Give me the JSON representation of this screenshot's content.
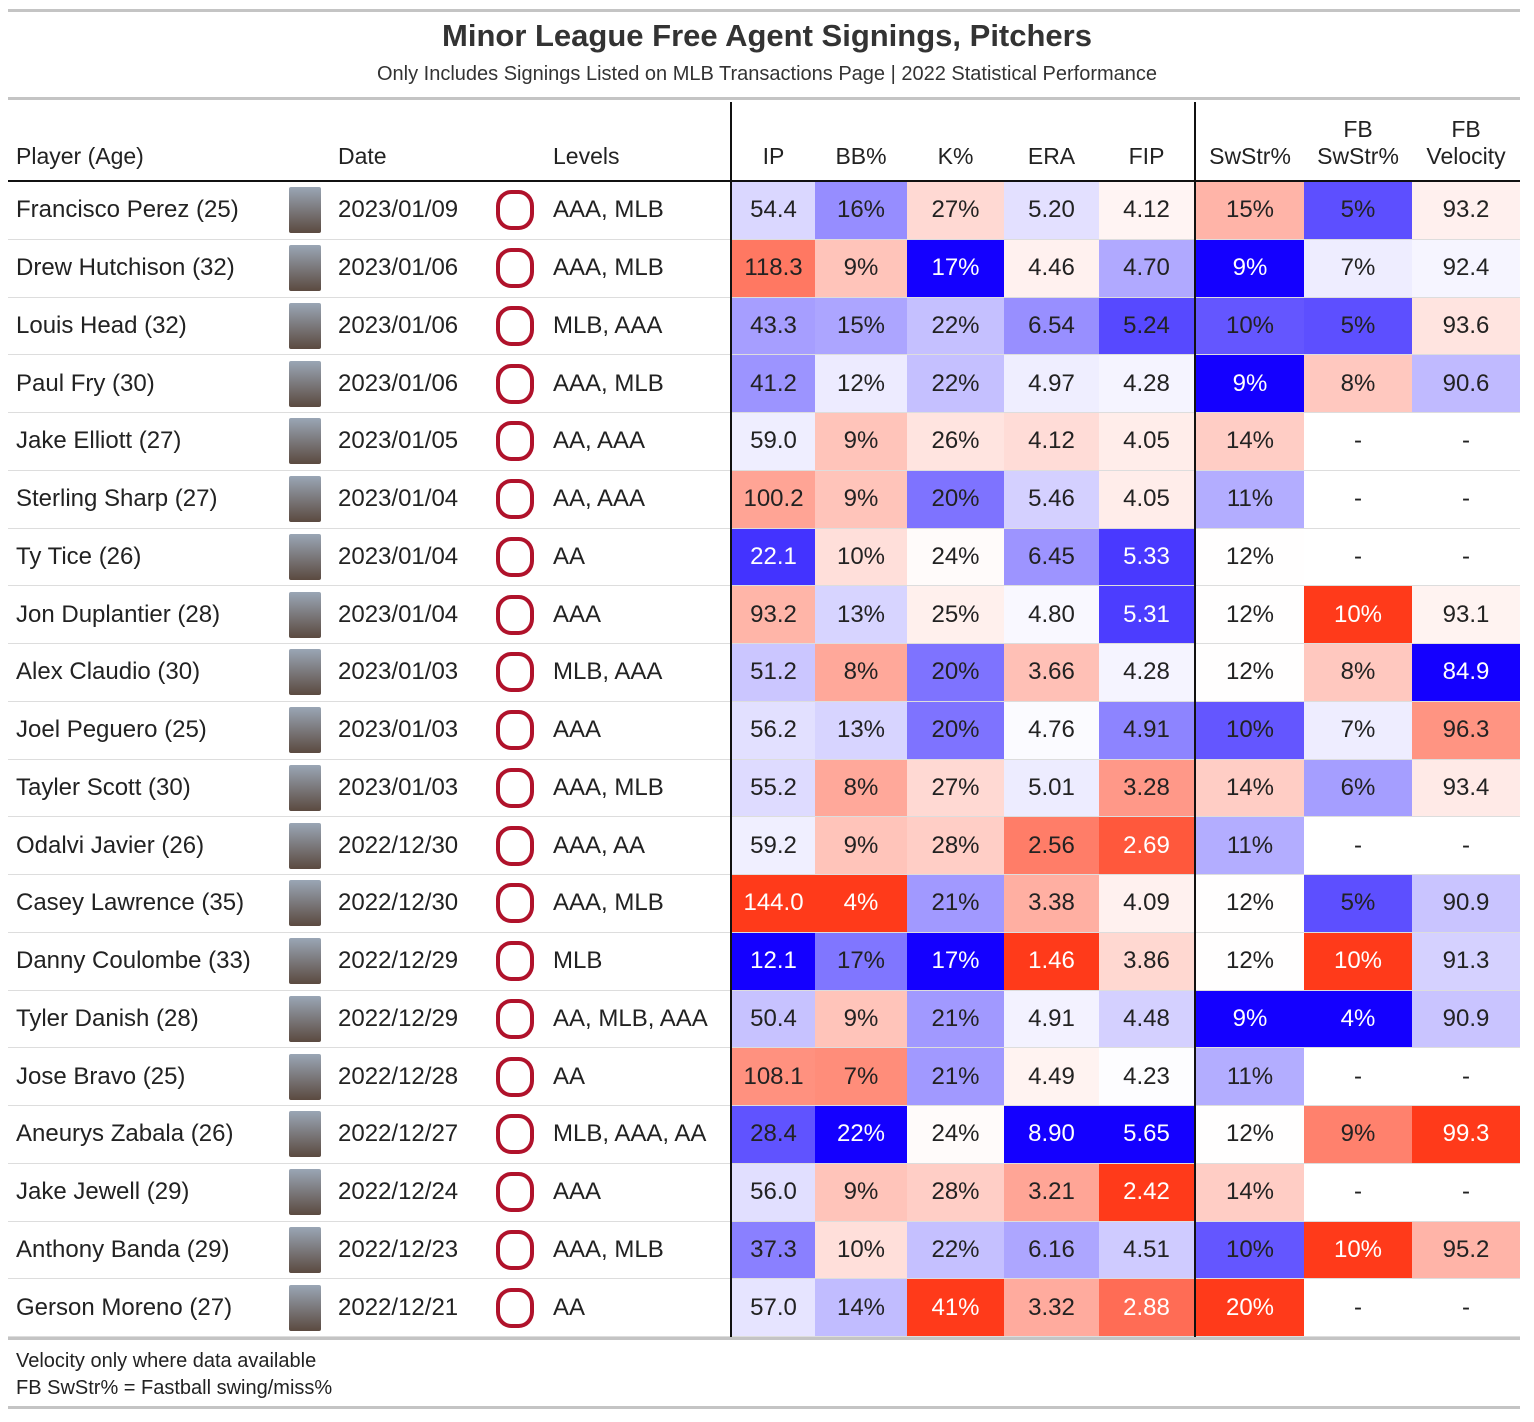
{
  "header": {
    "title": "Minor League Free Agent Signings, Pitchers",
    "subtitle": "Only Includes Signings Listed on MLB Transactions Page | 2022 Statistical Performance"
  },
  "table": {
    "columns": [
      "Player (Age)",
      "Date",
      "Levels",
      "IP",
      "BB%",
      "K%",
      "ERA",
      "FIP",
      "SwStr%",
      "FB SwStr%",
      "FB Velocity"
    ],
    "rows": [
      [
        "Francisco Perez (25)",
        "2023/01/09",
        "AAA, MLB",
        "54.4",
        "16%",
        "27%",
        "5.20",
        "4.12",
        "15%",
        "5%",
        "93.2"
      ],
      [
        "Drew Hutchison (32)",
        "2023/01/06",
        "AAA, MLB",
        "118.3",
        "9%",
        "17%",
        "4.46",
        "4.70",
        "9%",
        "7%",
        "92.4"
      ],
      [
        "Louis Head (32)",
        "2023/01/06",
        "MLB, AAA",
        "43.3",
        "15%",
        "22%",
        "6.54",
        "5.24",
        "10%",
        "5%",
        "93.6"
      ],
      [
        "Paul Fry (30)",
        "2023/01/06",
        "AAA, MLB",
        "41.2",
        "12%",
        "22%",
        "4.97",
        "4.28",
        "9%",
        "8%",
        "90.6"
      ],
      [
        "Jake Elliott (27)",
        "2023/01/05",
        "AA, AAA",
        "59.0",
        "9%",
        "26%",
        "4.12",
        "4.05",
        "14%",
        "-",
        "-"
      ],
      [
        "Sterling Sharp (27)",
        "2023/01/04",
        "AA, AAA",
        "100.2",
        "9%",
        "20%",
        "5.46",
        "4.05",
        "11%",
        "-",
        "-"
      ],
      [
        "Ty Tice (26)",
        "2023/01/04",
        "AA",
        "22.1",
        "10%",
        "24%",
        "6.45",
        "5.33",
        "12%",
        "-",
        "-"
      ],
      [
        "Jon Duplantier (28)",
        "2023/01/04",
        "AAA",
        "93.2",
        "13%",
        "25%",
        "4.80",
        "5.31",
        "12%",
        "10%",
        "93.1"
      ],
      [
        "Alex Claudio (30)",
        "2023/01/03",
        "MLB, AAA",
        "51.2",
        "8%",
        "20%",
        "3.66",
        "4.28",
        "12%",
        "8%",
        "84.9"
      ],
      [
        "Joel Peguero (25)",
        "2023/01/03",
        "AAA",
        "56.2",
        "13%",
        "20%",
        "4.76",
        "4.91",
        "10%",
        "7%",
        "96.3"
      ],
      [
        "Tayler Scott (30)",
        "2023/01/03",
        "AAA, MLB",
        "55.2",
        "8%",
        "27%",
        "5.01",
        "3.28",
        "14%",
        "6%",
        "93.4"
      ],
      [
        "Odalvi Javier (26)",
        "2022/12/30",
        "AAA, AA",
        "59.2",
        "9%",
        "28%",
        "2.56",
        "2.69",
        "11%",
        "-",
        "-"
      ],
      [
        "Casey Lawrence (35)",
        "2022/12/30",
        "AAA, MLB",
        "144.0",
        "4%",
        "21%",
        "3.38",
        "4.09",
        "12%",
        "5%",
        "90.9"
      ],
      [
        "Danny Coulombe (33)",
        "2022/12/29",
        "MLB",
        "12.1",
        "17%",
        "17%",
        "1.46",
        "3.86",
        "12%",
        "10%",
        "91.3"
      ],
      [
        "Tyler Danish (28)",
        "2022/12/29",
        "AA, MLB, AAA",
        "50.4",
        "9%",
        "21%",
        "4.91",
        "4.48",
        "9%",
        "4%",
        "90.9"
      ],
      [
        "Jose Bravo (25)",
        "2022/12/28",
        "AA",
        "108.1",
        "7%",
        "21%",
        "4.49",
        "4.23",
        "11%",
        "-",
        "-"
      ],
      [
        "Aneurys Zabala (26)",
        "2022/12/27",
        "MLB, AAA, AA",
        "28.4",
        "22%",
        "24%",
        "8.90",
        "5.65",
        "12%",
        "9%",
        "99.3"
      ],
      [
        "Jake Jewell (29)",
        "2022/12/24",
        "AAA",
        "56.0",
        "9%",
        "28%",
        "3.21",
        "2.42",
        "14%",
        "-",
        "-"
      ],
      [
        "Anthony Banda (29)",
        "2022/12/23",
        "AAA, MLB",
        "37.3",
        "10%",
        "22%",
        "6.16",
        "4.51",
        "10%",
        "10%",
        "95.2"
      ],
      [
        "Gerson Moreno (27)",
        "2022/12/21",
        "AA",
        "57.0",
        "14%",
        "41%",
        "3.32",
        "2.88",
        "20%",
        "-",
        "-"
      ]
    ]
  },
  "footer": [
    "Velocity only where data available",
    "FB SwStr% = Fastball swing/miss%"
  ]
}
